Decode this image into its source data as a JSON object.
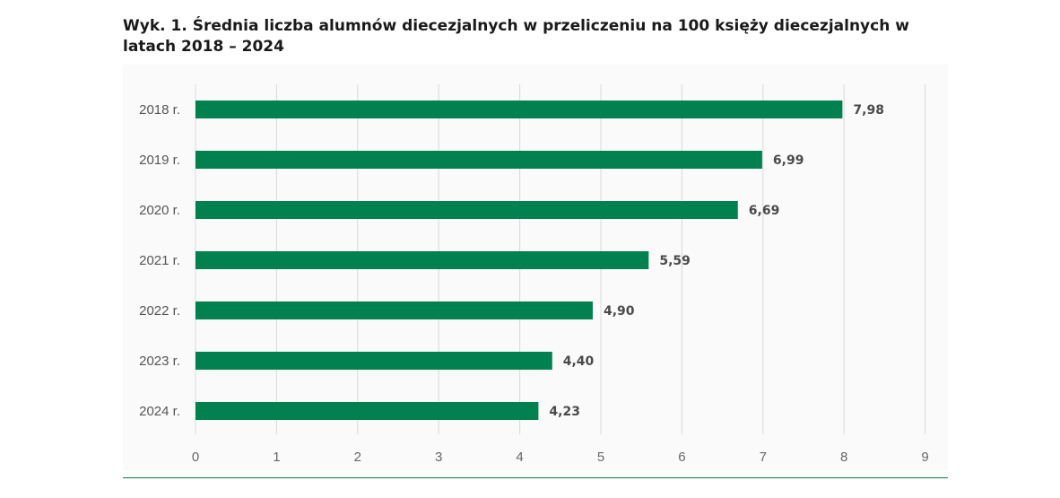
{
  "chart_data": {
    "type": "bar",
    "orientation": "horizontal",
    "title": "Wyk. 1. Średnia liczba alumnów diecezjalnych w przeliczeniu na 100 księży diecezjalnych w latach 2018 – 2024",
    "categories": [
      "2018 r.",
      "2019 r.",
      "2020 r.",
      "2021 r.",
      "2022 r.",
      "2023 r.",
      "2024 r."
    ],
    "values": [
      7.98,
      6.99,
      6.69,
      5.59,
      4.9,
      4.4,
      4.23
    ],
    "data_labels": [
      "7,98",
      "6,99",
      "6,69",
      "5,59",
      "4,90",
      "4,40",
      "4,23"
    ],
    "x_ticks": [
      "0",
      "1",
      "2",
      "3",
      "4",
      "5",
      "6",
      "7",
      "8",
      "9"
    ],
    "xlim": [
      0,
      9
    ],
    "grid": "vertical",
    "legend": "none",
    "bar_color": "#00814F",
    "xlabel": "",
    "ylabel": ""
  }
}
